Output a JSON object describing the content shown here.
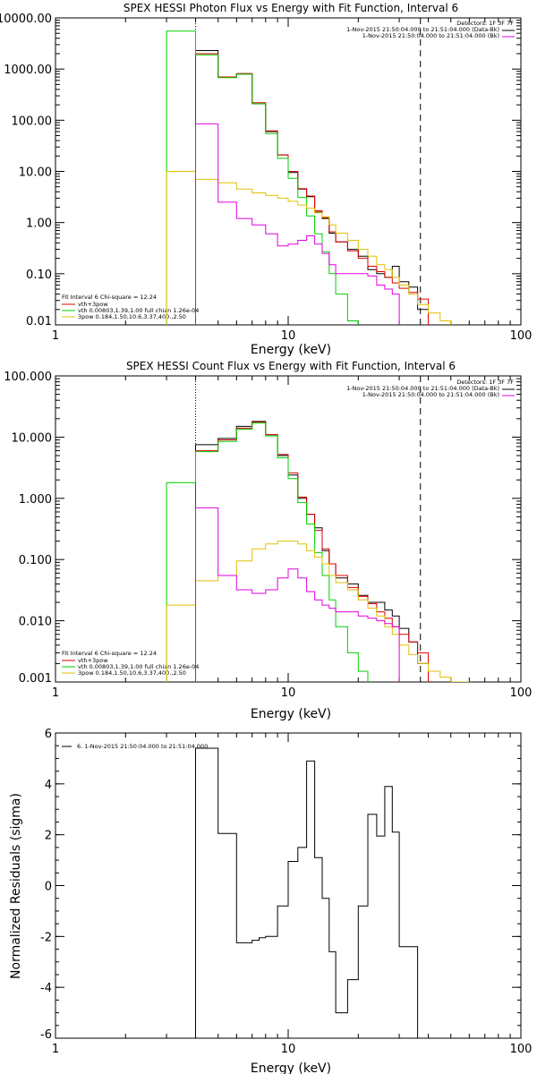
{
  "chart_data": [
    {
      "type": "line",
      "title": "SPEX HESSI Photon Flux vs Energy with Fit Function, Interval 6",
      "xlabel": "Energy (keV)",
      "ylabel": "",
      "xscale": "log",
      "yscale": "log",
      "xlim": [
        1,
        100
      ],
      "ylim": [
        0.01,
        10000
      ],
      "xtick_labels": [
        "1",
        "10",
        "100"
      ],
      "ytick_values": [
        0.01,
        0.1,
        1,
        10,
        100,
        1000,
        10000
      ],
      "ytick_labels": [
        "0.01",
        "0.10",
        "1.00",
        "10.00",
        "100.00",
        "1000.00",
        "10000.00"
      ],
      "vlines": [
        {
          "x": 4,
          "style": "dotted"
        },
        {
          "x": 37,
          "style": "dashed"
        }
      ],
      "legend_right": [
        "Detectors: 1F 3F 7F",
        "1-Nov-2015 21:50:04.000 to 21:51:04.000 (Data-Bk)",
        "1-Nov-2015 21:50:04.000 to 21:51:04.000 (Bk)"
      ],
      "legend_left": [
        "Fit Interval 6   Chi-square = 12.24",
        "vth+3pow",
        "vth 0.00803,1.39,1.00  full chian 1.26e-04",
        "3pow 0.184,1.50,10.6,3.37,400.,2.50"
      ],
      "edges": [
        3,
        4,
        5,
        6,
        7,
        8,
        9,
        10,
        11,
        12,
        13,
        14,
        15,
        16,
        18,
        20,
        22,
        24,
        26,
        28,
        30,
        33,
        36,
        40,
        45,
        50
      ],
      "series": [
        {
          "name": "(Data-Bk)",
          "color": "#000000",
          "values": [
            null,
            2300,
            700,
            800,
            210,
            60,
            21,
            9.5,
            4.5,
            3.2,
            1.6,
            1.2,
            0.62,
            0.42,
            0.3,
            0.22,
            0.12,
            0.1,
            0.085,
            0.14,
            0.07,
            0.055,
            0.02,
            null,
            null
          ]
        },
        {
          "name": "vth+3pow",
          "color": "#e00000",
          "values": [
            null,
            2000,
            700,
            820,
            220,
            62,
            21,
            10,
            4.6,
            3.3,
            1.7,
            1.25,
            0.66,
            0.42,
            0.28,
            0.2,
            0.14,
            0.11,
            0.085,
            0.066,
            0.052,
            0.043,
            0.032,
            null,
            null
          ]
        },
        {
          "name": "vth",
          "color": "#00d000",
          "values": [
            5500,
            1900,
            680,
            800,
            210,
            55,
            18,
            7.3,
            3.1,
            1.35,
            0.6,
            0.27,
            0.1,
            0.04,
            0.012,
            null,
            null,
            null,
            null,
            null,
            null,
            null,
            null,
            null,
            null
          ]
        },
        {
          "name": "3pow",
          "color": "#e0c000",
          "values": [
            10,
            7,
            6,
            4.5,
            3.8,
            3.4,
            3.0,
            2.6,
            2.2,
            1.9,
            1.55,
            1.3,
            0.9,
            0.62,
            0.45,
            0.3,
            0.22,
            0.15,
            0.12,
            0.085,
            0.06,
            0.04,
            0.025,
            0.017,
            0.012
          ]
        },
        {
          "name": "(Bk)",
          "color": "#e000e0",
          "values": [
            null,
            85,
            2.5,
            1.2,
            0.9,
            0.6,
            0.35,
            0.38,
            0.45,
            0.55,
            0.38,
            0.25,
            0.15,
            0.1,
            0.1,
            0.1,
            0.09,
            0.06,
            0.05,
            0.04,
            null,
            null,
            null,
            null,
            null
          ]
        }
      ]
    },
    {
      "type": "line",
      "title": "SPEX HESSI Count Flux vs Energy with Fit Function, Interval 6",
      "xlabel": "Energy (keV)",
      "ylabel": "",
      "xscale": "log",
      "yscale": "log",
      "xlim": [
        1,
        100
      ],
      "ylim": [
        0.001,
        100
      ],
      "xtick_labels": [
        "1",
        "10",
        "100"
      ],
      "ytick_values": [
        0.001,
        0.01,
        0.1,
        1,
        10,
        100
      ],
      "ytick_labels": [
        "0.001",
        "0.010",
        "0.100",
        "1.000",
        "10.000",
        "100.000"
      ],
      "vlines": [
        {
          "x": 4,
          "style": "dotted"
        },
        {
          "x": 37,
          "style": "dashed"
        }
      ],
      "legend_right": [
        "Detectors: 1F 3F 7F",
        "1-Nov-2015 21:50:04.000 to 21:51:04.000 (Data-Bk)",
        "1-Nov-2015 21:50:04.000 to 21:51:04.000 (Bk)"
      ],
      "legend_left": [
        "Fit Interval 6   Chi-square = 12.24",
        "vth+3pow",
        "vth 0.00803,1.39,1.00  full chian 1.26e-04",
        "3pow 0.184,1.50,10.6,3.37,400.,2.50"
      ],
      "edges": [
        3,
        4,
        5,
        6,
        7,
        8,
        9,
        10,
        11,
        12,
        13,
        14,
        15,
        16,
        18,
        20,
        22,
        24,
        26,
        28,
        30,
        33,
        36,
        40,
        45,
        50,
        55,
        60
      ],
      "series": [
        {
          "name": "(Data-Bk)",
          "color": "#000000",
          "values": [
            null,
            7.5,
            9.5,
            15,
            18,
            11,
            5.0,
            2.4,
            1.0,
            0.55,
            0.33,
            0.14,
            0.085,
            0.05,
            0.04,
            0.026,
            0.02,
            0.02,
            0.015,
            0.012,
            0.0075,
            0.0045,
            0.002,
            null,
            null,
            null,
            null
          ]
        },
        {
          "name": "vth+3pow",
          "color": "#e00000",
          "values": [
            null,
            6.0,
            9.0,
            14,
            17.5,
            11,
            5.2,
            2.6,
            1.05,
            0.55,
            0.3,
            0.15,
            0.085,
            0.055,
            0.035,
            0.025,
            0.019,
            0.014,
            0.011,
            0.008,
            0.006,
            0.0045,
            0.003,
            null,
            null,
            null,
            null
          ]
        },
        {
          "name": "vth",
          "color": "#00d000",
          "values": [
            1.8,
            5.8,
            8.5,
            13.5,
            17,
            10.5,
            4.6,
            2.1,
            0.85,
            0.38,
            0.13,
            0.055,
            0.022,
            0.008,
            0.003,
            0.0015,
            null,
            null,
            null,
            null,
            null,
            null,
            null,
            null,
            null,
            null,
            null
          ]
        },
        {
          "name": "3pow",
          "color": "#e0c000",
          "values": [
            0.018,
            0.045,
            0.055,
            0.095,
            0.15,
            0.18,
            0.2,
            0.2,
            0.18,
            0.14,
            0.11,
            0.085,
            0.055,
            0.042,
            0.032,
            0.022,
            0.016,
            0.012,
            0.008,
            0.006,
            0.004,
            0.0028,
            0.002,
            0.0015,
            0.0012,
            0.001,
            0.001
          ]
        },
        {
          "name": "(Bk)",
          "color": "#e000e0",
          "values": [
            null,
            0.7,
            0.055,
            0.032,
            0.028,
            0.032,
            0.05,
            0.07,
            0.05,
            0.03,
            0.022,
            0.018,
            0.016,
            0.014,
            0.014,
            0.012,
            0.011,
            0.01,
            0.009,
            0.008,
            null,
            null,
            null,
            null,
            null,
            null,
            null
          ]
        }
      ]
    },
    {
      "type": "line",
      "title": "",
      "xlabel": "Energy (keV)",
      "ylabel": "Normalized Residuals (sigma)",
      "xscale": "log",
      "yscale": "linear",
      "xlim": [
        1,
        100
      ],
      "ylim": [
        -6,
        6
      ],
      "xtick_labels": [
        "1",
        "10",
        "100"
      ],
      "ytick_values": [
        -6,
        -4,
        -2,
        0,
        2,
        4,
        6
      ],
      "ytick_labels": [
        "-6",
        "-4",
        "-2",
        "0",
        "2",
        "4",
        "6"
      ],
      "legend": "6. 1-Nov-2015 21:50:04.000 to 21:51:04.000",
      "edges": [
        4,
        5,
        6,
        7,
        7.5,
        8,
        9,
        10,
        11,
        12,
        13,
        14,
        15,
        16,
        18,
        20,
        22,
        24,
        26,
        28,
        30,
        33,
        36,
        37
      ],
      "series": [
        {
          "name": "",
          "color": "#000000",
          "values": [
            5.4,
            2.05,
            -2.25,
            -2.15,
            -2.05,
            -2.0,
            -0.8,
            0.95,
            1.5,
            4.9,
            1.1,
            -0.5,
            -2.6,
            -5.0,
            -3.7,
            -0.8,
            2.8,
            1.95,
            3.9,
            2.1,
            -2.4,
            -2.4,
            -6.0
          ]
        }
      ]
    }
  ]
}
